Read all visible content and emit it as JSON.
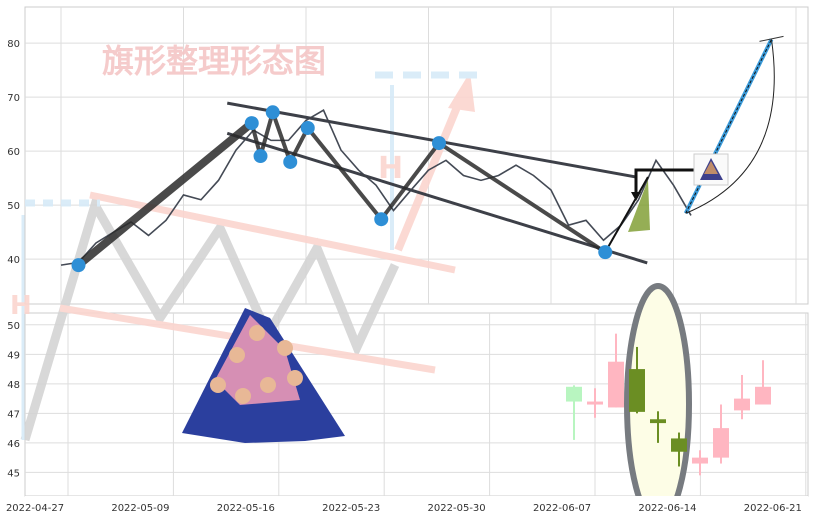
{
  "watermark": {
    "title": "旗形整理形态图",
    "marker_letter": "H"
  },
  "chart_data": [
    {
      "type": "line",
      "panel": "top",
      "ylim": [
        31.7,
        86.7
      ],
      "yticks": [
        40,
        50,
        60,
        70,
        80
      ],
      "grid": true,
      "series_values": [
        38.9,
        39.4,
        43,
        45,
        46.9,
        44.4,
        47.2,
        51.9,
        51,
        54.6,
        60.2,
        63.9,
        62,
        62,
        65.7,
        67.6,
        60.2,
        56.5,
        53.7,
        49,
        52.8,
        56.5,
        58.3,
        55.5,
        54.6,
        55.5,
        57.4,
        55.5,
        52.8,
        46.3,
        47.2,
        43.5,
        46.3,
        51,
        58.3,
        53.7,
        48.1
      ],
      "pivots": [
        {
          "at": 1.0,
          "value": 38.9
        },
        {
          "at": 10.9,
          "value": 65.2
        },
        {
          "at": 11.4,
          "value": 59.1
        },
        {
          "at": 12.1,
          "value": 67.2
        },
        {
          "at": 13.1,
          "value": 58.0
        },
        {
          "at": 14.1,
          "value": 64.3
        },
        {
          "at": 18.3,
          "value": 47.4
        },
        {
          "at": 21.6,
          "value": 61.5
        },
        {
          "at": 31.1,
          "value": 41.3
        }
      ],
      "channel_upper": [
        [
          9.5,
          68.9
        ],
        [
          32.9,
          55.2
        ]
      ],
      "channel_lower": [
        [
          9.5,
          63.3
        ],
        [
          33.5,
          39.3
        ]
      ],
      "projection": [
        [
          35.7,
          48.5
        ],
        [
          40.6,
          80.7
        ]
      ],
      "colors": {
        "line": "#444a55",
        "pivot": "#2e8fd6",
        "projection": "#3a9ad9"
      }
    },
    {
      "type": "candlestick",
      "panel": "bottom",
      "ylim": [
        44.2,
        50.4
      ],
      "yticks": [
        45,
        46,
        47,
        48,
        49,
        50
      ],
      "xtick_labels": [
        "2022-04-27",
        "2022-05-09",
        "2022-05-16",
        "2022-05-23",
        "2022-05-30",
        "2022-06-07",
        "2022-06-14",
        "2022-06-21"
      ],
      "grid": true,
      "candles": [
        {
          "date": "2022-06-06",
          "open": 47.4,
          "high": 47.95,
          "low": 46.1,
          "close": 47.9,
          "color": "#b8f5c0"
        },
        {
          "date": "2022-06-07",
          "open": 47.3,
          "high": 47.85,
          "low": 46.85,
          "close": 47.4,
          "color": "#ffb6c1"
        },
        {
          "date": "2022-06-08",
          "open": 47.2,
          "high": 49.7,
          "low": 47.2,
          "close": 48.75,
          "color": "#ffb6c1"
        },
        {
          "date": "2022-06-09",
          "open": 48.5,
          "high": 49.25,
          "low": 47.0,
          "close": 47.05,
          "color": "#6b8e23"
        },
        {
          "date": "2022-06-10",
          "open": 46.8,
          "high": 47.07,
          "low": 46.0,
          "close": 46.67,
          "color": "#6b8e23"
        },
        {
          "date": "2022-06-13",
          "open": 46.15,
          "high": 46.35,
          "low": 45.2,
          "close": 45.7,
          "color": "#6b8e23"
        },
        {
          "date": "2022-06-14",
          "open": 45.3,
          "high": 45.75,
          "low": 44.9,
          "close": 45.5,
          "color": "#ffb6c1"
        },
        {
          "date": "2022-06-15",
          "open": 45.5,
          "high": 47.3,
          "low": 45.3,
          "close": 46.5,
          "color": "#ffb6c1"
        },
        {
          "date": "2022-06-16",
          "open": 47.1,
          "high": 48.3,
          "low": 46.8,
          "close": 47.5,
          "color": "#ffb6c1"
        },
        {
          "date": "2022-06-17",
          "open": 47.3,
          "high": 48.8,
          "low": 47.3,
          "close": 47.9,
          "color": "#ffb6c1"
        }
      ],
      "highlight": {
        "from": "2022-06-09",
        "to": "2022-06-13",
        "fill": "#fdfde6",
        "stroke": "#777b80"
      }
    }
  ]
}
